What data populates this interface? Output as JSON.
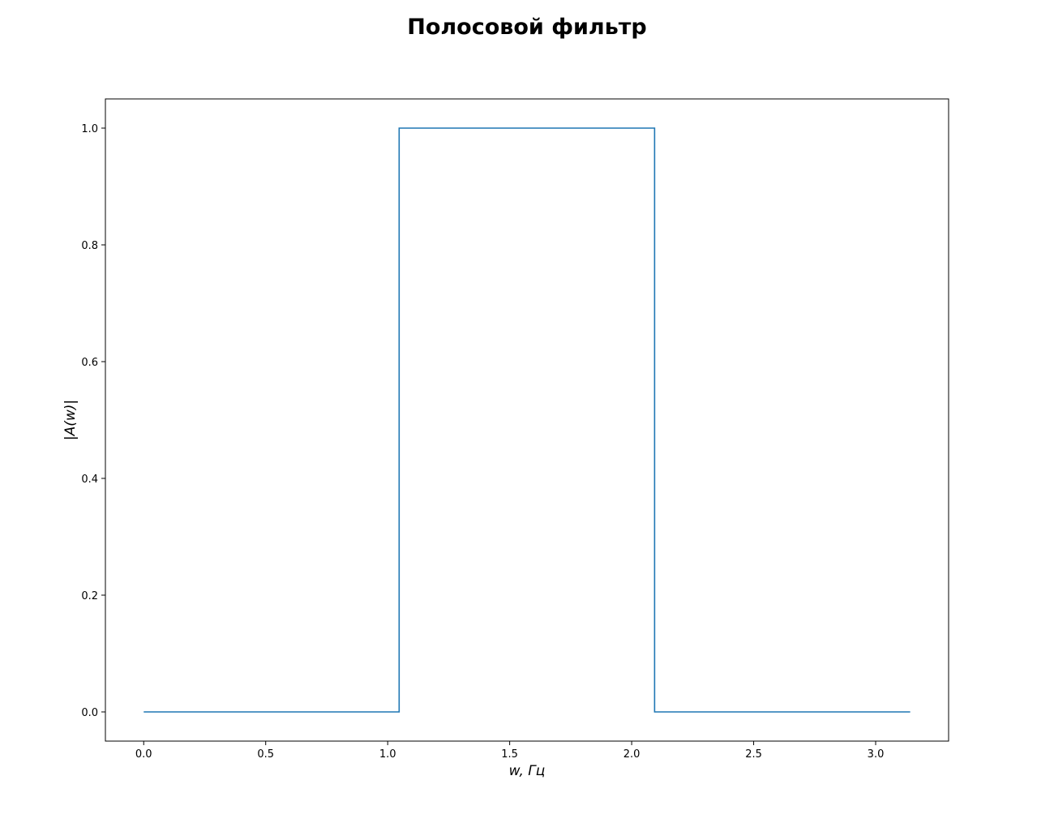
{
  "chart_data": {
    "type": "line",
    "title": "Полосовой фильтр",
    "xlabel": "w, Гц",
    "ylabel": "|A(w)|",
    "xlim": [
      -0.157,
      3.299
    ],
    "ylim": [
      -0.05,
      1.05
    ],
    "x_ticks": [
      0.0,
      0.5,
      1.0,
      1.5,
      2.0,
      2.5,
      3.0
    ],
    "x_tick_labels": [
      "0.0",
      "0.5",
      "1.0",
      "1.5",
      "2.0",
      "2.5",
      "3.0"
    ],
    "y_ticks": [
      0.0,
      0.2,
      0.4,
      0.6,
      0.8,
      1.0
    ],
    "y_tick_labels": [
      "0.0",
      "0.2",
      "0.4",
      "0.6",
      "0.8",
      "1.0"
    ],
    "grid": false,
    "series": [
      {
        "name": "|A(w)|",
        "color": "#1f77b4",
        "x": [
          0.0,
          1.047,
          1.047,
          2.094,
          2.094,
          3.1416
        ],
        "y": [
          0.0,
          0.0,
          1.0,
          1.0,
          0.0,
          0.0
        ]
      }
    ]
  }
}
